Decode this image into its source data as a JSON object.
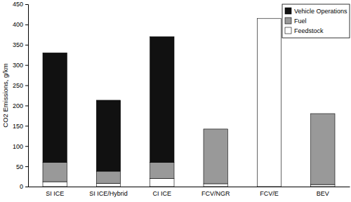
{
  "chart_data": {
    "type": "bar",
    "stacked": true,
    "legend": "top-right",
    "grid": false,
    "y_label": "CO2 Emissions, g/km",
    "categories": [
      "SI ICE",
      "SI ICE/Hybrid",
      "CI ICE",
      "FCV/NGR",
      "FCV/E",
      "BEV"
    ],
    "series": [
      {
        "name": "Feedstock",
        "color": "#ffffff",
        "values": [
          12,
          8,
          20,
          7,
          415,
          5
        ]
      },
      {
        "name": "Fuel",
        "color": "#999999",
        "values": [
          48,
          30,
          40,
          135,
          0,
          175
        ]
      },
      {
        "name": "Vehicle Operations",
        "color": "#111111",
        "values": [
          270,
          175,
          310,
          0,
          0,
          0
        ]
      }
    ],
    "ylim": [
      0,
      450
    ],
    "yticks": [
      0,
      50,
      100,
      150,
      200,
      250,
      300,
      350,
      400,
      450
    ]
  }
}
